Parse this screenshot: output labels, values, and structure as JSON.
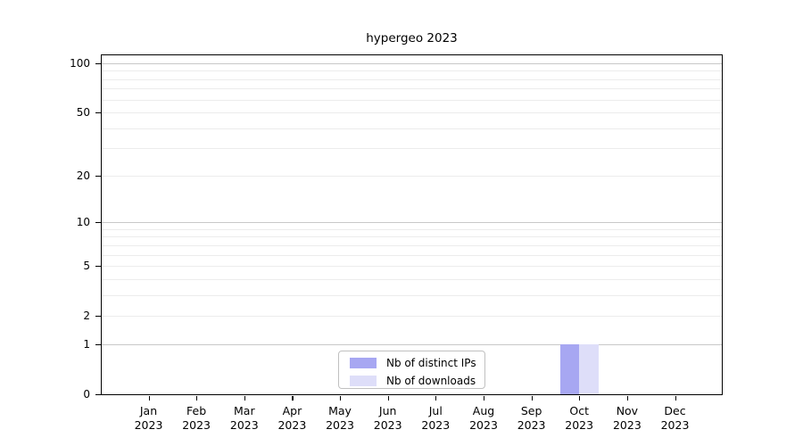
{
  "chart_data": {
    "type": "bar",
    "title": "hypergeo 2023",
    "categories": [
      "Jan",
      "Feb",
      "Mar",
      "Apr",
      "May",
      "Jun",
      "Jul",
      "Aug",
      "Sep",
      "Oct",
      "Nov",
      "Dec"
    ],
    "category_year": "2023",
    "series": [
      {
        "name": "Nb of distinct IPs",
        "color": "#a7a7f2",
        "values": [
          0,
          0,
          0,
          0,
          0,
          0,
          0,
          0,
          0,
          1,
          0,
          0
        ]
      },
      {
        "name": "Nb of downloads",
        "color": "#dedef9",
        "values": [
          0,
          0,
          0,
          0,
          0,
          0,
          0,
          0,
          0,
          1,
          0,
          0
        ]
      }
    ],
    "yscale": "log1p",
    "yticks": [
      0,
      1,
      2,
      5,
      10,
      20,
      50,
      100
    ],
    "y_top_value": 112,
    "ylim": [
      0,
      112
    ],
    "gridlines": {
      "major": [
        1,
        10,
        100
      ],
      "minor": [
        2,
        3,
        4,
        5,
        6,
        7,
        8,
        9,
        20,
        30,
        40,
        50,
        60,
        70,
        80,
        90
      ]
    },
    "grid_on": true,
    "legend_position": "lower center",
    "colors": {
      "major_grid": "#c8c8c8",
      "minor_grid": "#ececec",
      "axis": "#000000",
      "background": "#ffffff"
    }
  }
}
